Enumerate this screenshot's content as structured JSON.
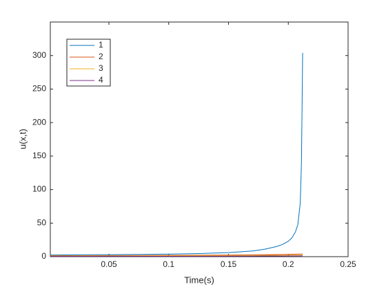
{
  "chart_data": {
    "type": "line",
    "x_label": "Time(s)",
    "y_label": "u(x,t)",
    "x": [
      0.001,
      0.025,
      0.05,
      0.075,
      0.1,
      0.125,
      0.15,
      0.17,
      0.18,
      0.19,
      0.195,
      0.2,
      0.203,
      0.206,
      0.208,
      0.21,
      0.211,
      0.212
    ],
    "series": [
      {
        "name": "1",
        "color": "#0072bd",
        "values": [
          2.5,
          2.7,
          3.0,
          3.3,
          3.8,
          4.6,
          6,
          8.5,
          11,
          15,
          18,
          23,
          28,
          37,
          48,
          80,
          140,
          304
        ]
      },
      {
        "name": "2",
        "color": "#d95319",
        "values": [
          1.5,
          1.6,
          1.7,
          1.8,
          2,
          2.2,
          2.5,
          2.8,
          3,
          3.2,
          3.3,
          3.5,
          3.6,
          3.7,
          3.8,
          3.9,
          4,
          4
        ]
      },
      {
        "name": "3",
        "color": "#edb120",
        "values": [
          1,
          1.1,
          1.2,
          1.3,
          1.4,
          1.5,
          1.7,
          1.9,
          2,
          2.1,
          2.2,
          2.3,
          2.4,
          2.5,
          2.5,
          2.6,
          2.6,
          2.7
        ]
      },
      {
        "name": "4",
        "color": "#7e2f8e",
        "values": [
          0.5,
          0.5,
          0.6,
          0.6,
          0.7,
          0.7,
          0.8,
          0.9,
          1,
          1,
          1,
          1.1,
          1.1,
          1.2,
          1.2,
          1.2,
          1.3,
          1.3
        ]
      }
    ],
    "xlim": [
      0.001,
      0.25
    ],
    "xticks": [
      0.05,
      0.1,
      0.15,
      0.2,
      0.25
    ],
    "ylim": [
      0,
      350
    ],
    "yticks": [
      0,
      50,
      100,
      150,
      200,
      250,
      300
    ],
    "grid": false,
    "legend": "top-left"
  }
}
